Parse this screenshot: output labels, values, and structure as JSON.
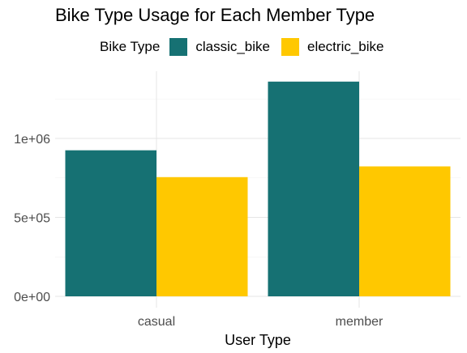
{
  "chart_data": {
    "type": "bar",
    "title": "Bike Type Usage for Each Member Type",
    "xlabel": "User Type",
    "ylabel": "",
    "categories": [
      "casual",
      "member"
    ],
    "series": [
      {
        "name": "classic_bike",
        "values": [
          925000,
          1360000
        ],
        "color": "#167173"
      },
      {
        "name": "electric_bike",
        "values": [
          755000,
          823000
        ],
        "color": "#FFC800"
      }
    ],
    "legend": {
      "title": "Bike Type",
      "placement": "top"
    },
    "ylim": [
      0,
      1450000
    ],
    "yticks": [
      0,
      500000,
      1000000
    ],
    "ytick_labels": [
      "0e+00",
      "5e+05",
      "1e+06"
    ],
    "grid": true
  }
}
